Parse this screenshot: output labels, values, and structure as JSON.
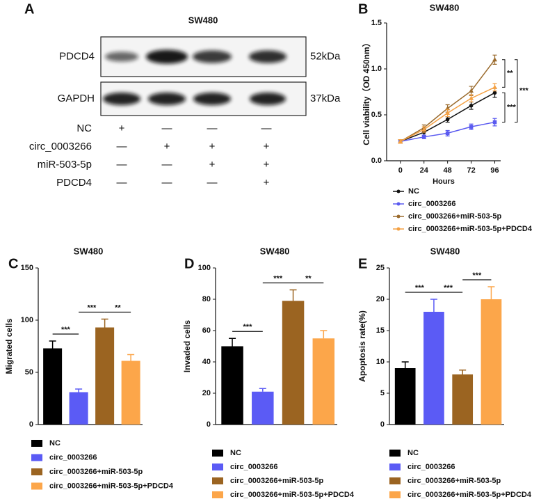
{
  "blot": {
    "panel_label": "A",
    "title": "SW480",
    "bands": [
      {
        "name": "PDCD4",
        "size": "52kDa"
      },
      {
        "name": "GAPDH",
        "size": "37kDa"
      }
    ],
    "conditions": [
      {
        "name": "NC",
        "signs": [
          "+",
          "—",
          "—",
          "—"
        ]
      },
      {
        "name": "circ_0003266",
        "signs": [
          "—",
          "+",
          "+",
          "+"
        ]
      },
      {
        "name": "miR-503-5p",
        "signs": [
          "—",
          "—",
          "+",
          "+"
        ]
      },
      {
        "name": "PDCD4",
        "signs": [
          "—",
          "—",
          "—",
          "+"
        ]
      }
    ]
  },
  "chart_data": [
    {
      "type": "line",
      "panel_label": "B",
      "title": "SW480",
      "x_label": "Hours",
      "y_label": "Cell viability（OD 450nm）",
      "x": [
        0,
        24,
        48,
        72,
        96
      ],
      "xlim": [
        -14,
        102
      ],
      "xticks": [
        0,
        24,
        48,
        72,
        96
      ],
      "ylim": [
        0,
        1.5
      ],
      "yticks": [
        {
          "value": 0,
          "label": "0.0"
        },
        0.5,
        {
          "value": 1,
          "label": "1.0"
        },
        1.5
      ],
      "series": [
        {
          "name": "NC",
          "color": "#111111",
          "values": [
            0.21,
            0.31,
            0.45,
            0.6,
            0.74
          ],
          "errors": [
            0.02,
            0.03,
            0.03,
            0.04,
            0.05
          ]
        },
        {
          "name": "circ_0003266",
          "color": "#5a5af0",
          "values": [
            0.21,
            0.26,
            0.3,
            0.37,
            0.42
          ],
          "errors": [
            0.02,
            0.02,
            0.03,
            0.03,
            0.04
          ]
        },
        {
          "name": "circ_0003266+miR-503-5p",
          "color": "#9a6a2c",
          "values": [
            0.21,
            0.36,
            0.57,
            0.76,
            1.1
          ],
          "errors": [
            0.02,
            0.03,
            0.04,
            0.05,
            0.05
          ]
        },
        {
          "name": "circ_0003266+miR-503-5p+PDCD4",
          "color": "#f4a042",
          "values": [
            0.21,
            0.34,
            0.52,
            0.68,
            0.8
          ],
          "errors": [
            0.02,
            0.03,
            0.04,
            0.04,
            0.04
          ]
        }
      ],
      "annotations": [
        {
          "text": "**",
          "between": [
            2,
            3
          ]
        },
        {
          "text": "***",
          "between": [
            0,
            1
          ]
        },
        {
          "text": "***",
          "between": [
            1,
            2
          ]
        }
      ]
    },
    {
      "type": "bar",
      "panel_label": "C",
      "title": "SW480",
      "y_label": "Migrated  cells",
      "categories": [
        "NC",
        "circ_0003266",
        "circ_0003266+miR-503-5p",
        "circ_0003266+miR-503-5p+PDCD4"
      ],
      "colors": [
        "#000000",
        "#5b5bf5",
        "#9b6421",
        "#fca64a"
      ],
      "values": [
        73,
        31,
        93,
        61
      ],
      "errors": [
        7,
        3,
        8,
        6
      ],
      "ylim": [
        0,
        150
      ],
      "yticks": [
        0,
        50,
        100,
        150
      ],
      "annotations": [
        {
          "text": "***",
          "between": [
            0,
            1
          ]
        },
        {
          "text": "***",
          "between": [
            1,
            2
          ]
        },
        {
          "text": "**",
          "between": [
            2,
            3
          ]
        }
      ]
    },
    {
      "type": "bar",
      "panel_label": "D",
      "title": "SW480",
      "y_label": "Invaded cells",
      "categories": [
        "NC",
        "circ_0003266",
        "circ_0003266+miR-503-5p",
        "circ_0003266+miR-503-5p+PDCD4"
      ],
      "colors": [
        "#000000",
        "#5b5bf5",
        "#9b6421",
        "#fca64a"
      ],
      "values": [
        50,
        21,
        79,
        55
      ],
      "errors": [
        5,
        2,
        7,
        5
      ],
      "ylim": [
        0,
        100
      ],
      "yticks": [
        0,
        20,
        40,
        60,
        80,
        100
      ],
      "annotations": [
        {
          "text": "***",
          "between": [
            0,
            1
          ]
        },
        {
          "text": "***",
          "between": [
            1,
            2
          ]
        },
        {
          "text": "**",
          "between": [
            2,
            3
          ]
        }
      ]
    },
    {
      "type": "bar",
      "panel_label": "E",
      "title": "SW480",
      "y_label": "Apoptosis rate(%)",
      "categories": [
        "NC",
        "circ_0003266",
        "circ_0003266+miR-503-5p",
        "circ_0003266+miR-503-5p+PDCD4"
      ],
      "colors": [
        "#000000",
        "#5b5bf5",
        "#9b6421",
        "#fca64a"
      ],
      "values": [
        9,
        18,
        8,
        20
      ],
      "errors": [
        1,
        2,
        0.7,
        2
      ],
      "ylim": [
        0,
        25
      ],
      "yticks": [
        0,
        5,
        10,
        15,
        20,
        25
      ],
      "annotations": [
        {
          "text": "***",
          "between": [
            0,
            1
          ]
        },
        {
          "text": "***",
          "between": [
            1,
            2
          ]
        },
        {
          "text": "***",
          "between": [
            2,
            3
          ]
        }
      ]
    }
  ]
}
